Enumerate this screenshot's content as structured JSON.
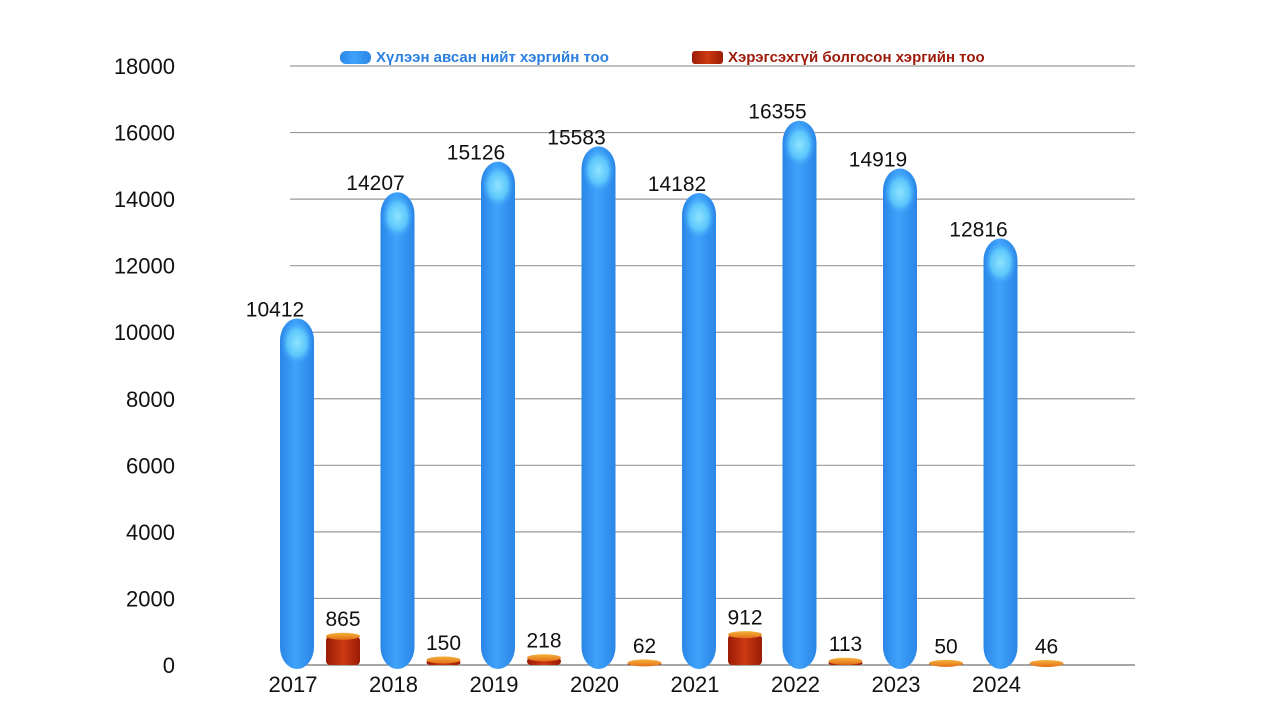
{
  "chart_data": {
    "type": "bar",
    "title": "",
    "xlabel": "",
    "ylabel": "",
    "ylim": [
      0,
      18000
    ],
    "yticks": [
      0,
      2000,
      4000,
      6000,
      8000,
      10000,
      12000,
      14000,
      16000,
      18000
    ],
    "grid": true,
    "legend_position": "top",
    "categories": [
      "2017",
      "2018",
      "2019",
      "2020",
      "2021",
      "2022",
      "2023",
      "2024"
    ],
    "series": [
      {
        "name": "Хүлээн авсан нийт хэргийн тоо",
        "color": "#3a95f0",
        "values": [
          10412,
          14207,
          15126,
          15583,
          14182,
          16355,
          14919,
          12816
        ]
      },
      {
        "name": "Хэрэгсэхгүй болгосон хэргийн тоо",
        "color": "#b5260c",
        "values": [
          865,
          150,
          218,
          62,
          912,
          113,
          50,
          46
        ]
      }
    ]
  }
}
